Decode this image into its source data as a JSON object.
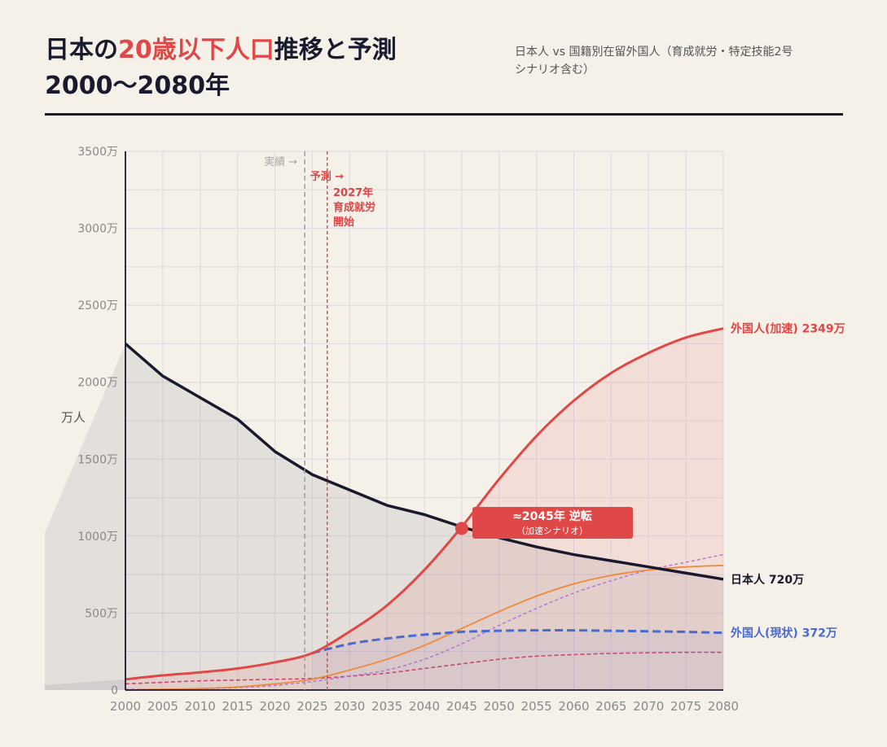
{
  "header": {
    "title_pre": "日本の",
    "title_highlight": "20歳以下人口",
    "title_post": "推移と予測",
    "title_line2": "2000〜2080年",
    "subtitle_line1": "日本人 vs 国籍別在留外国人（育成就労・特定技能2号",
    "subtitle_line2": "シナリオ含む）"
  },
  "chart_data": {
    "type": "line",
    "ylabel": "万人",
    "ylim": [
      0,
      3500
    ],
    "xlim": [
      2000,
      2080
    ],
    "grid": true,
    "x_ticks": [
      "2000",
      "2005",
      "2010",
      "2015",
      "2020",
      "2025",
      "2030",
      "2035",
      "2040",
      "2045",
      "2050",
      "2055",
      "2060",
      "2065",
      "2070",
      "2075",
      "2080"
    ],
    "y_ticks": [
      "0",
      "500万",
      "1000万",
      "1500万",
      "2000万",
      "2500万",
      "3000万",
      "3500万"
    ],
    "series": [
      {
        "name": "日本人",
        "end_label": "日本人 720万",
        "color": "#1a1a2e",
        "x": [
          2000,
          2005,
          2010,
          2015,
          2020,
          2025,
          2030,
          2035,
          2040,
          2045,
          2050,
          2055,
          2060,
          2065,
          2070,
          2075,
          2080
        ],
        "values": [
          2250,
          2040,
          1900,
          1760,
          1550,
          1400,
          1300,
          1200,
          1140,
          1060,
          990,
          930,
          880,
          840,
          800,
          760,
          720
        ]
      },
      {
        "name": "外国人(加速)",
        "end_label": "外国人(加速) 2349万",
        "color": "#e04848",
        "x": [
          2000,
          2005,
          2010,
          2015,
          2020,
          2025,
          2030,
          2035,
          2040,
          2045,
          2050,
          2055,
          2060,
          2065,
          2070,
          2075,
          2080
        ],
        "values": [
          70,
          95,
          115,
          140,
          180,
          240,
          380,
          550,
          780,
          1060,
          1370,
          1650,
          1880,
          2060,
          2190,
          2290,
          2349
        ]
      },
      {
        "name": "外国人(現状)",
        "end_label": "外国人(現状) 372万",
        "color": "#4a6ad0",
        "x": [
          2025,
          2030,
          2035,
          2040,
          2045,
          2050,
          2055,
          2060,
          2065,
          2070,
          2075,
          2080
        ],
        "values": [
          240,
          300,
          335,
          360,
          378,
          385,
          388,
          388,
          385,
          382,
          378,
          372
        ]
      },
      {
        "color": "#f08a3a",
        "x": [
          2000,
          2005,
          2010,
          2015,
          2020,
          2025,
          2030,
          2035,
          2040,
          2045,
          2050,
          2055,
          2060,
          2065,
          2070,
          2075,
          2080
        ],
        "values": [
          0,
          5,
          10,
          20,
          40,
          70,
          130,
          200,
          290,
          400,
          510,
          610,
          690,
          745,
          780,
          800,
          810
        ]
      },
      {
        "color": "#b070d8",
        "x": [
          2000,
          2005,
          2010,
          2015,
          2020,
          2025,
          2030,
          2035,
          2040,
          2045,
          2050,
          2055,
          2060,
          2065,
          2070,
          2075,
          2080
        ],
        "values": [
          5,
          5,
          8,
          15,
          30,
          55,
          90,
          130,
          200,
          300,
          420,
          530,
          630,
          710,
          780,
          830,
          880
        ]
      },
      {
        "color": "#c84870",
        "x": [
          2000,
          2005,
          2010,
          2015,
          2020,
          2025,
          2030,
          2035,
          2040,
          2045,
          2050,
          2055,
          2060,
          2065,
          2070,
          2075,
          2080
        ],
        "values": [
          40,
          50,
          60,
          65,
          70,
          75,
          90,
          110,
          140,
          170,
          200,
          220,
          230,
          238,
          242,
          245,
          245
        ]
      }
    ],
    "annotations": {
      "actual_line_x": 2024,
      "actual_label": "実績 →",
      "forecast_line_x": 2027,
      "forecast_label": "予測 →",
      "event_line1": "2027年",
      "event_line2": "育成就労",
      "event_line3": "開始",
      "crossover_x": 2045,
      "crossover_y": 1050,
      "crossover_title": "≈2045年 逆転",
      "crossover_sub": "（加速シナリオ）"
    }
  }
}
